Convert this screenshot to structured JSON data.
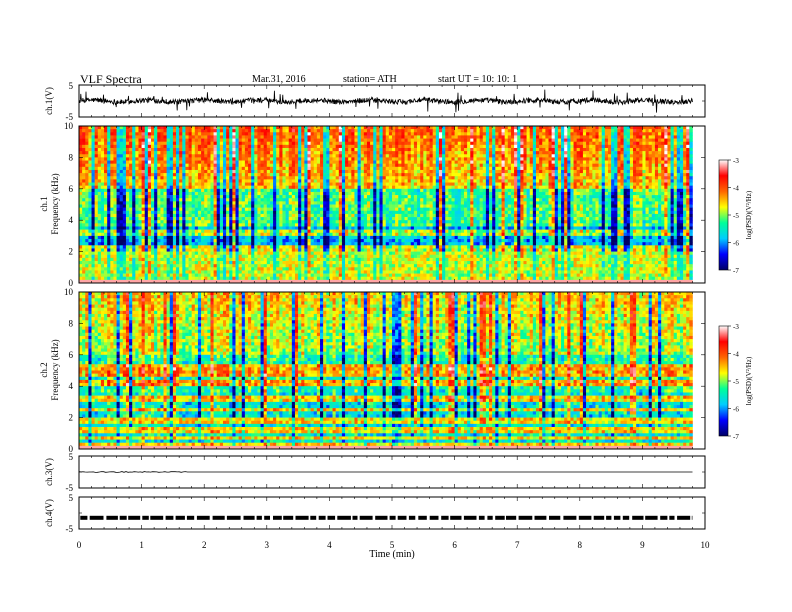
{
  "header": {
    "title": "VLF  Spectra",
    "date": "Mar.31, 2016",
    "station": "station= ATH",
    "start": "start  UT  =   10: 10: 1"
  },
  "chart_data": [
    {
      "type": "line",
      "id": "ch1-waveform",
      "ylabel": "ch.1(V)",
      "ylim": [
        -5,
        5
      ],
      "yticks": [
        "5",
        "-5"
      ],
      "xlim": [
        0,
        10
      ],
      "trace_color": "#000000"
    },
    {
      "type": "heatmap",
      "id": "ch1-spectrogram",
      "ylabel_line1": "ch.1",
      "ylabel_line2": "Frequency  (kHz)",
      "ylim": [
        0,
        10
      ],
      "yticks": [
        "0",
        "2",
        "4",
        "6",
        "8",
        "10"
      ],
      "xlim": [
        0,
        10
      ],
      "data_extent_min": 9.8,
      "colorbar": {
        "label": "log(PSD)(V²/Hz)",
        "range": [
          -7,
          -3
        ],
        "ticks": [
          "-3",
          "-4",
          "-5",
          "-6",
          "-7"
        ],
        "colors": [
          "#000066",
          "#0000ff",
          "#00ccff",
          "#00ff99",
          "#ffff00",
          "#ff6600",
          "#ff0000",
          "#ffffff"
        ]
      }
    },
    {
      "type": "heatmap",
      "id": "ch2-spectrogram",
      "ylabel_line1": "ch.2",
      "ylabel_line2": "Frequency  (kHz)",
      "ylim": [
        0,
        10
      ],
      "yticks": [
        "0",
        "2",
        "4",
        "6",
        "8",
        "10"
      ],
      "xlim": [
        0,
        10
      ],
      "data_extent_min": 9.8,
      "colorbar": {
        "label": "log(PSD)(V²/Hz)",
        "range": [
          -7,
          -3
        ],
        "ticks": [
          "-3",
          "-4",
          "-5",
          "-6",
          "-7"
        ],
        "colors": [
          "#000066",
          "#0000ff",
          "#00ccff",
          "#00ff99",
          "#ffff00",
          "#ff6600",
          "#ff0000",
          "#ffffff"
        ]
      }
    },
    {
      "type": "line",
      "id": "ch3-waveform",
      "ylabel": "ch.3(V)",
      "ylim": [
        -5,
        5
      ],
      "yticks": [
        "5",
        "-5"
      ],
      "xlim": [
        0,
        10
      ],
      "level_v": 0
    },
    {
      "type": "line",
      "id": "ch4-waveform",
      "ylabel": "ch.4(V)",
      "ylim": [
        -5,
        5
      ],
      "yticks": [
        "5",
        "-5"
      ],
      "xlim": [
        0,
        10
      ],
      "xlabel": "Time  (min)",
      "xticks": [
        "0",
        "1",
        "2",
        "3",
        "4",
        "5",
        "6",
        "7",
        "8",
        "9",
        "10"
      ],
      "level_v": -1.5
    }
  ]
}
